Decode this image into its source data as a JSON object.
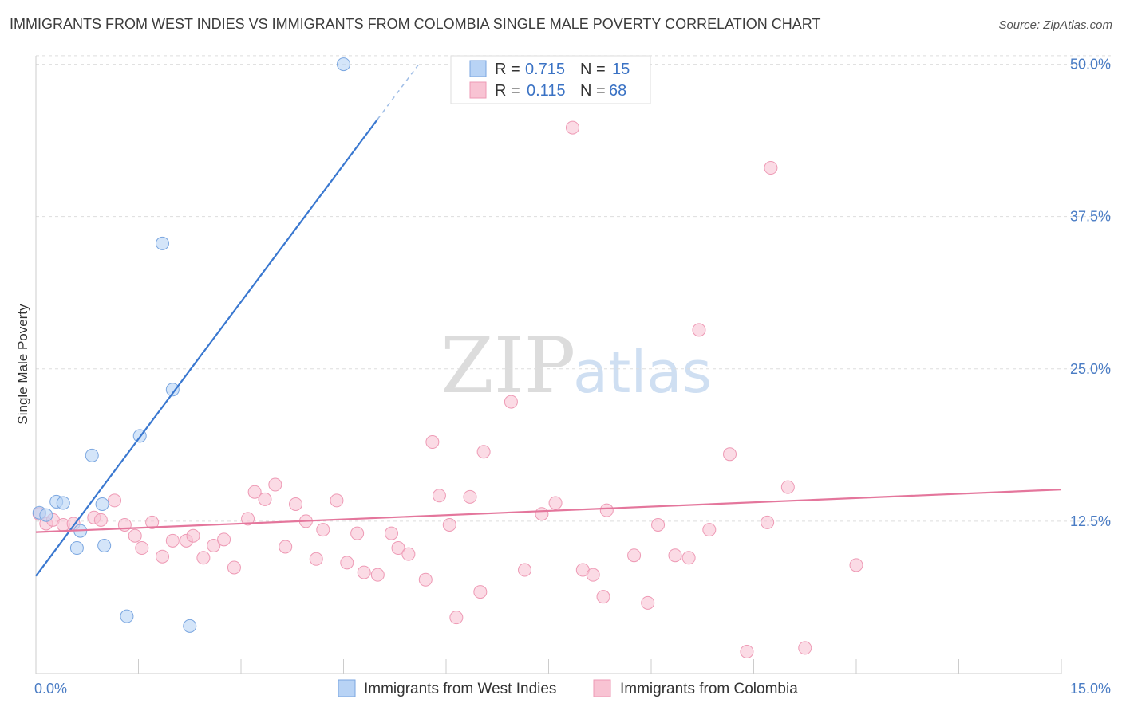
{
  "header": {
    "title": "IMMIGRANTS FROM WEST INDIES VS IMMIGRANTS FROM COLOMBIA SINGLE MALE POVERTY CORRELATION CHART",
    "source": "Source: ZipAtlas.com"
  },
  "watermark": {
    "zip": "ZIP",
    "atlas": "atlas"
  },
  "legend_box": {
    "rows": [
      {
        "r_label": "R = ",
        "r_value": "0.715",
        "n_label": "N = ",
        "n_value": "15"
      },
      {
        "r_label": "R = ",
        "r_value": "0.115",
        "n_label": "N = ",
        "n_value": "68"
      }
    ]
  },
  "colors": {
    "west_indies_fill": "#b8d3f5",
    "west_indies_stroke": "#7aa6e0",
    "west_indies_line": "#3a78d0",
    "colombia_fill": "#f8c3d3",
    "colombia_stroke": "#ee9ab5",
    "colombia_line": "#e4769c",
    "axis_label": "#4a7cc4",
    "grid": "#dddddd"
  },
  "chart_data": {
    "type": "scatter",
    "title": "IMMIGRANTS FROM WEST INDIES VS IMMIGRANTS FROM COLOMBIA SINGLE MALE POVERTY CORRELATION CHART",
    "xlabel": "",
    "ylabel": "Single Male Poverty",
    "xlim": [
      0,
      15
    ],
    "ylim": [
      0,
      52
    ],
    "x_tick_labels": [
      "0.0%",
      "15.0%"
    ],
    "y_ticks": [
      12.5,
      25.0,
      37.5,
      50.0
    ],
    "y_tick_labels": [
      "12.5%",
      "25.0%",
      "37.5%",
      "50.0%"
    ],
    "grid": true,
    "legend_placement": "bottom-center",
    "series": [
      {
        "name": "Immigrants from West Indies",
        "r": 0.715,
        "n": 15,
        "trend": {
          "x0": 0,
          "y0": 8.0,
          "x1": 5.0,
          "y1": 45.5,
          "dash_to_x": 5.6
        },
        "points": [
          {
            "x": 0.05,
            "y": 13.2
          },
          {
            "x": 0.15,
            "y": 13.0
          },
          {
            "x": 0.3,
            "y": 14.1
          },
          {
            "x": 0.4,
            "y": 14.0
          },
          {
            "x": 0.6,
            "y": 10.3
          },
          {
            "x": 0.65,
            "y": 11.7
          },
          {
            "x": 0.82,
            "y": 17.9
          },
          {
            "x": 0.97,
            "y": 13.9
          },
          {
            "x": 1.0,
            "y": 10.5
          },
          {
            "x": 1.33,
            "y": 4.7
          },
          {
            "x": 1.52,
            "y": 19.5
          },
          {
            "x": 1.85,
            "y": 35.3
          },
          {
            "x": 2.0,
            "y": 23.3
          },
          {
            "x": 2.25,
            "y": 3.9
          },
          {
            "x": 4.5,
            "y": 50.0
          }
        ]
      },
      {
        "name": "Immigrants from Colombia",
        "r": 0.115,
        "n": 68,
        "trend": {
          "x0": 0,
          "y0": 11.6,
          "x1": 15,
          "y1": 15.1
        },
        "points": [
          {
            "x": 0.05,
            "y": 13.1
          },
          {
            "x": 0.15,
            "y": 12.3
          },
          {
            "x": 0.25,
            "y": 12.6
          },
          {
            "x": 0.4,
            "y": 12.2
          },
          {
            "x": 0.55,
            "y": 12.3
          },
          {
            "x": 0.85,
            "y": 12.8
          },
          {
            "x": 0.95,
            "y": 12.6
          },
          {
            "x": 1.15,
            "y": 14.2
          },
          {
            "x": 1.3,
            "y": 12.2
          },
          {
            "x": 1.45,
            "y": 11.3
          },
          {
            "x": 1.55,
            "y": 10.3
          },
          {
            "x": 1.7,
            "y": 12.4
          },
          {
            "x": 1.85,
            "y": 9.6
          },
          {
            "x": 2.0,
            "y": 10.9
          },
          {
            "x": 2.2,
            "y": 10.9
          },
          {
            "x": 2.3,
            "y": 11.3
          },
          {
            "x": 2.45,
            "y": 9.5
          },
          {
            "x": 2.6,
            "y": 10.5
          },
          {
            "x": 2.75,
            "y": 11.0
          },
          {
            "x": 2.9,
            "y": 8.7
          },
          {
            "x": 3.1,
            "y": 12.7
          },
          {
            "x": 3.2,
            "y": 14.9
          },
          {
            "x": 3.35,
            "y": 14.3
          },
          {
            "x": 3.5,
            "y": 15.5
          },
          {
            "x": 3.65,
            "y": 10.4
          },
          {
            "x": 3.8,
            "y": 13.9
          },
          {
            "x": 3.95,
            "y": 12.5
          },
          {
            "x": 4.1,
            "y": 9.4
          },
          {
            "x": 4.2,
            "y": 11.8
          },
          {
            "x": 4.4,
            "y": 14.2
          },
          {
            "x": 4.55,
            "y": 9.1
          },
          {
            "x": 4.7,
            "y": 11.5
          },
          {
            "x": 4.8,
            "y": 8.3
          },
          {
            "x": 5.0,
            "y": 8.1
          },
          {
            "x": 5.2,
            "y": 11.5
          },
          {
            "x": 5.3,
            "y": 10.3
          },
          {
            "x": 5.45,
            "y": 9.8
          },
          {
            "x": 5.7,
            "y": 7.7
          },
          {
            "x": 5.8,
            "y": 19.0
          },
          {
            "x": 5.9,
            "y": 14.6
          },
          {
            "x": 6.05,
            "y": 12.2
          },
          {
            "x": 6.15,
            "y": 4.6
          },
          {
            "x": 6.35,
            "y": 14.5
          },
          {
            "x": 6.5,
            "y": 6.7
          },
          {
            "x": 6.55,
            "y": 18.2
          },
          {
            "x": 6.95,
            "y": 22.3
          },
          {
            "x": 7.15,
            "y": 8.5
          },
          {
            "x": 7.4,
            "y": 13.1
          },
          {
            "x": 7.6,
            "y": 14.0
          },
          {
            "x": 7.85,
            "y": 44.8
          },
          {
            "x": 8.0,
            "y": 8.5
          },
          {
            "x": 8.15,
            "y": 8.1
          },
          {
            "x": 8.3,
            "y": 6.3
          },
          {
            "x": 8.35,
            "y": 13.4
          },
          {
            "x": 8.75,
            "y": 9.7
          },
          {
            "x": 8.95,
            "y": 5.8
          },
          {
            "x": 9.1,
            "y": 12.2
          },
          {
            "x": 9.35,
            "y": 9.7
          },
          {
            "x": 9.55,
            "y": 9.5
          },
          {
            "x": 9.7,
            "y": 28.2
          },
          {
            "x": 9.85,
            "y": 11.8
          },
          {
            "x": 10.15,
            "y": 18.0
          },
          {
            "x": 10.4,
            "y": 1.8
          },
          {
            "x": 10.7,
            "y": 12.4
          },
          {
            "x": 10.75,
            "y": 41.5
          },
          {
            "x": 11.0,
            "y": 15.3
          },
          {
            "x": 11.25,
            "y": 2.1
          },
          {
            "x": 12.0,
            "y": 8.9
          }
        ]
      }
    ]
  }
}
